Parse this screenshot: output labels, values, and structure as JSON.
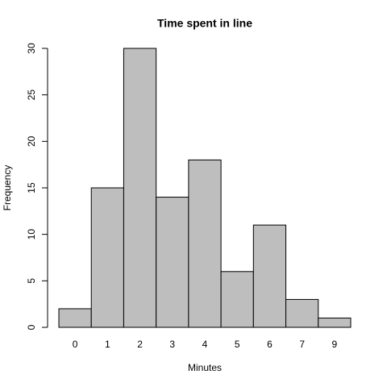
{
  "chart_data": {
    "type": "bar",
    "title": "Time spent in line",
    "x_label": "Minutes",
    "y_label": "Frequency",
    "categories": [
      "0",
      "1",
      "2",
      "3",
      "4",
      "5",
      "6",
      "7",
      "9"
    ],
    "values": [
      2,
      15,
      30,
      14,
      18,
      6,
      11,
      3,
      1
    ],
    "color": "#bebebe",
    "ylim": [
      0,
      30
    ],
    "yticks": [
      0,
      5,
      10,
      15,
      20,
      25,
      30
    ],
    "grid": false
  }
}
